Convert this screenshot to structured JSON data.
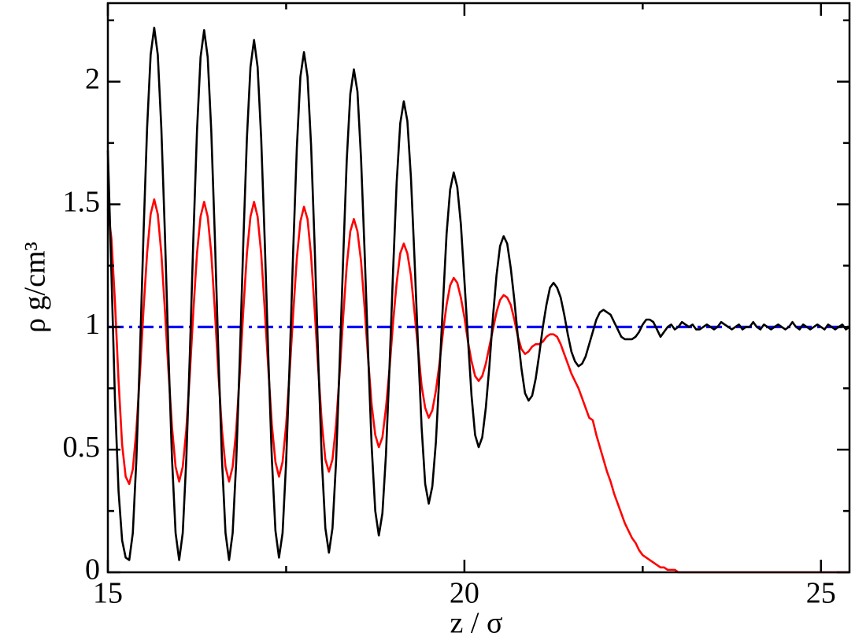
{
  "chart_data": {
    "type": "line",
    "xlabel": "z / σ",
    "ylabel": "ρ g/cm³",
    "xlim": [
      15,
      25.4
    ],
    "ylim": [
      0,
      2.32
    ],
    "xticks": [
      15,
      20,
      25
    ],
    "yticks": [
      0,
      0.5,
      1,
      1.5,
      2
    ],
    "xminorticks": [
      17.5,
      22.5
    ],
    "yminorticks": [
      0.25,
      0.75,
      1.25,
      1.75,
      2.25
    ],
    "x": [
      15,
      15.05,
      15.1,
      15.15,
      15.2,
      15.25,
      15.3,
      15.35,
      15.4,
      15.45,
      15.5,
      15.55,
      15.6,
      15.65,
      15.7,
      15.75,
      15.8,
      15.85,
      15.9,
      15.95,
      16,
      16.05,
      16.1,
      16.15,
      16.2,
      16.25,
      16.3,
      16.35,
      16.4,
      16.45,
      16.5,
      16.55,
      16.6,
      16.65,
      16.7,
      16.75,
      16.8,
      16.85,
      16.9,
      16.95,
      17,
      17.05,
      17.1,
      17.15,
      17.2,
      17.25,
      17.3,
      17.35,
      17.4,
      17.45,
      17.5,
      17.55,
      17.6,
      17.65,
      17.7,
      17.75,
      17.8,
      17.85,
      17.9,
      17.95,
      18,
      18.05,
      18.1,
      18.15,
      18.2,
      18.25,
      18.3,
      18.35,
      18.4,
      18.45,
      18.5,
      18.55,
      18.6,
      18.65,
      18.7,
      18.75,
      18.8,
      18.85,
      18.9,
      18.95,
      19,
      19.05,
      19.1,
      19.15,
      19.2,
      19.25,
      19.3,
      19.35,
      19.4,
      19.45,
      19.5,
      19.55,
      19.6,
      19.65,
      19.7,
      19.75,
      19.8,
      19.85,
      19.9,
      19.95,
      20,
      20.05,
      20.1,
      20.15,
      20.2,
      20.25,
      20.3,
      20.35,
      20.4,
      20.45,
      20.5,
      20.55,
      20.6,
      20.65,
      20.7,
      20.75,
      20.8,
      20.85,
      20.9,
      20.95,
      21,
      21.05,
      21.1,
      21.15,
      21.2,
      21.25,
      21.3,
      21.35,
      21.4,
      21.45,
      21.5,
      21.55,
      21.6,
      21.65,
      21.7,
      21.75,
      21.8,
      21.85,
      21.9,
      21.95,
      22,
      22.05,
      22.1,
      22.15,
      22.2,
      22.25,
      22.3,
      22.35,
      22.4,
      22.45,
      22.5,
      22.55,
      22.6,
      22.65,
      22.7,
      22.75,
      22.8,
      22.85,
      22.9,
      22.95,
      23,
      23.05,
      23.1,
      23.15,
      23.2,
      23.25,
      23.3,
      23.35,
      23.4,
      23.45,
      23.5,
      23.55,
      23.6,
      23.65,
      23.7,
      23.75,
      23.8,
      23.85,
      23.9,
      23.95,
      24,
      24.05,
      24.1,
      24.15,
      24.2,
      24.25,
      24.3,
      24.35,
      24.4,
      24.45,
      24.5,
      24.55,
      24.6,
      24.65,
      24.7,
      24.75,
      24.8,
      24.85,
      24.9,
      24.95,
      25,
      25.05,
      25.1,
      25.15,
      25.2,
      25.25,
      25.3,
      25.35,
      25.4
    ],
    "series": [
      {
        "color": "#000000",
        "values": [
          1.72,
          1.22,
          0.7,
          0.33,
          0.13,
          0.06,
          0.05,
          0.16,
          0.46,
          0.89,
          1.38,
          1.81,
          2.11,
          2.22,
          2.11,
          1.81,
          1.38,
          0.89,
          0.46,
          0.16,
          0.05,
          0.16,
          0.46,
          0.89,
          1.37,
          1.8,
          2.1,
          2.21,
          2.1,
          1.8,
          1.37,
          0.89,
          0.46,
          0.16,
          0.05,
          0.16,
          0.45,
          0.87,
          1.35,
          1.77,
          2.06,
          2.17,
          2.06,
          1.77,
          1.35,
          0.88,
          0.46,
          0.17,
          0.06,
          0.16,
          0.45,
          0.86,
          1.32,
          1.73,
          2.02,
          2.12,
          2.02,
          1.74,
          1.33,
          0.87,
          0.46,
          0.18,
          0.08,
          0.18,
          0.45,
          0.85,
          1.28,
          1.68,
          1.95,
          2.05,
          1.96,
          1.69,
          1.31,
          0.89,
          0.51,
          0.25,
          0.15,
          0.24,
          0.48,
          0.84,
          1.23,
          1.59,
          1.83,
          1.92,
          1.84,
          1.61,
          1.28,
          0.92,
          0.59,
          0.36,
          0.28,
          0.35,
          0.53,
          0.81,
          1.1,
          1.38,
          1.56,
          1.63,
          1.57,
          1.42,
          1.19,
          0.95,
          0.72,
          0.56,
          0.51,
          0.55,
          0.67,
          0.84,
          1.04,
          1.21,
          1.33,
          1.37,
          1.34,
          1.24,
          1.11,
          0.96,
          0.83,
          0.73,
          0.7,
          0.72,
          0.79,
          0.89,
          1.0,
          1.09,
          1.16,
          1.18,
          1.16,
          1.12,
          1.05,
          0.97,
          0.9,
          0.86,
          0.84,
          0.85,
          0.88,
          0.93,
          0.98,
          1.03,
          1.06,
          1.07,
          1.06,
          1.05,
          1.02,
          0.99,
          0.96,
          0.95,
          0.95,
          0.95,
          0.96,
          0.98,
          1.01,
          1.03,
          1.03,
          1.02,
          0.99,
          0.96,
          0.98,
          1.0,
          1.01,
          0.99,
          1.0,
          1.02,
          1.01,
          1.0,
          1.01,
          0.99,
          0.99,
          1.0,
          1.01,
          1.0,
          0.99,
          1.0,
          1.02,
          1.01,
          1.0,
          0.99,
          1.0,
          1.01,
          0.99,
          1.0,
          1.0,
          1.02,
          1.0,
          0.99,
          1.01,
          1.0,
          0.99,
          1.0,
          1.01,
          1.0,
          0.99,
          1.0,
          1.02,
          1.0,
          0.99,
          1.01,
          1.0,
          0.99,
          1.0,
          1.01,
          1.0,
          0.99,
          1.01,
          1.0,
          0.99,
          1.0,
          1.01,
          0.99,
          1.0
        ]
      },
      {
        "color": "#ff0000",
        "values": [
          1.48,
          1.36,
          1.1,
          0.78,
          0.52,
          0.39,
          0.36,
          0.42,
          0.58,
          0.81,
          1.07,
          1.3,
          1.46,
          1.52,
          1.46,
          1.3,
          1.07,
          0.82,
          0.59,
          0.43,
          0.37,
          0.43,
          0.58,
          0.81,
          1.07,
          1.3,
          1.45,
          1.51,
          1.45,
          1.3,
          1.07,
          0.81,
          0.58,
          0.43,
          0.37,
          0.43,
          0.58,
          0.81,
          1.07,
          1.3,
          1.45,
          1.51,
          1.45,
          1.3,
          1.07,
          0.83,
          0.6,
          0.45,
          0.39,
          0.45,
          0.6,
          0.82,
          1.06,
          1.28,
          1.43,
          1.49,
          1.44,
          1.29,
          1.07,
          0.83,
          0.61,
          0.46,
          0.41,
          0.46,
          0.6,
          0.81,
          1.04,
          1.25,
          1.39,
          1.44,
          1.39,
          1.27,
          1.08,
          0.87,
          0.68,
          0.56,
          0.51,
          0.55,
          0.67,
          0.83,
          1.02,
          1.18,
          1.3,
          1.34,
          1.3,
          1.21,
          1.06,
          0.91,
          0.76,
          0.67,
          0.63,
          0.66,
          0.74,
          0.85,
          0.98,
          1.09,
          1.17,
          1.2,
          1.18,
          1.12,
          1.04,
          0.94,
          0.86,
          0.8,
          0.78,
          0.8,
          0.85,
          0.92,
          0.99,
          1.06,
          1.11,
          1.13,
          1.12,
          1.09,
          1.03,
          0.96,
          0.91,
          0.89,
          0.9,
          0.92,
          0.93,
          0.93,
          0.94,
          0.96,
          0.97,
          0.97,
          0.96,
          0.93,
          0.89,
          0.85,
          0.81,
          0.78,
          0.75,
          0.71,
          0.67,
          0.63,
          0.62,
          0.56,
          0.51,
          0.46,
          0.41,
          0.37,
          0.32,
          0.28,
          0.24,
          0.2,
          0.17,
          0.14,
          0.12,
          0.09,
          0.07,
          0.06,
          0.05,
          0.04,
          0.03,
          0.02,
          0.02,
          0.01,
          0.01,
          0.01,
          0,
          0,
          0,
          0,
          0,
          0,
          0,
          0,
          0,
          0,
          0,
          0,
          0,
          0,
          0,
          0,
          0,
          0,
          0,
          0,
          0,
          0,
          0,
          0,
          0,
          0,
          0,
          0,
          0,
          0,
          0,
          0,
          0,
          0,
          0,
          0,
          0,
          0,
          0,
          0,
          0,
          0,
          0,
          0,
          0,
          0,
          0,
          0,
          0
        ]
      },
      {
        "color": "#0000ff",
        "dash": "dashdot",
        "x": [
          15,
          25.4
        ],
        "values": [
          1,
          1
        ]
      }
    ]
  }
}
